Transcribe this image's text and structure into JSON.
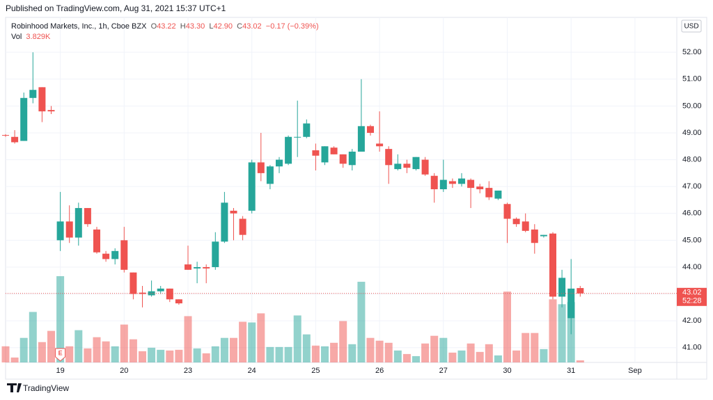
{
  "header": {
    "published": "Published on TradingView.com, Aug 31, 2021 15:37 UTC+1",
    "symbol": "Robinhood Markets, Inc., 1h, Cboe BZX",
    "o_label": "O",
    "o": "43.22",
    "h_label": "H",
    "h": "43.30",
    "l_label": "L",
    "l": "42.90",
    "c_label": "C",
    "c": "43.02",
    "change": "−0.17 (−0.39%)",
    "vol_label": "Vol",
    "vol": "3.829K",
    "currency": "USD"
  },
  "chart_data": {
    "type": "candlestick",
    "categories": [
      null,
      null,
      null,
      null,
      null,
      null,
      "19",
      null,
      null,
      null,
      null,
      null,
      null,
      "20",
      null,
      null,
      null,
      null,
      null,
      null,
      "23",
      null,
      null,
      null,
      null,
      null,
      null,
      "24",
      null,
      null,
      null,
      null,
      null,
      null,
      "25",
      null,
      null,
      null,
      null,
      null,
      null,
      "26",
      null,
      null,
      null,
      null,
      null,
      null,
      "27",
      null,
      null,
      null,
      null,
      null,
      null,
      "30",
      null,
      null,
      null,
      null,
      null,
      null,
      "31",
      null,
      null,
      null,
      null,
      null,
      null,
      "Sep"
    ],
    "open": [
      48.92,
      48.85,
      48.7,
      50.3,
      50.7,
      49.85,
      45.0,
      45.7,
      45.1,
      46.2,
      45.4,
      44.5,
      44.3,
      45.0,
      43.8,
      43.05,
      42.95,
      43.1,
      43.2,
      42.8,
      44.1,
      43.95,
      44.0,
      44.0,
      44.95,
      46.1,
      45.8,
      46.1,
      47.9,
      47.1,
      47.75,
      47.85,
      48.85,
      48.85,
      48.35,
      47.9,
      48.45,
      48.2,
      47.8,
      48.3,
      49.25,
      48.6,
      48.4,
      47.65,
      47.85,
      47.65,
      48.0,
      47.4,
      46.9,
      47.2,
      47.1,
      47.25,
      47.0,
      46.95,
      46.55,
      46.35,
      45.8,
      45.7,
      45.4,
      45.15,
      45.25,
      42.9,
      42.1,
      43.22,
      null,
      null,
      null,
      null,
      null,
      null
    ],
    "high": [
      48.95,
      49.1,
      50.5,
      52.0,
      50.7,
      50.0,
      46.8,
      46.3,
      46.4,
      46.2,
      45.5,
      44.6,
      44.7,
      45.5,
      43.8,
      43.3,
      43.5,
      43.3,
      43.2,
      42.8,
      44.8,
      44.2,
      44.1,
      45.3,
      46.8,
      46.2,
      45.9,
      48.0,
      49.0,
      47.8,
      48.1,
      48.9,
      50.2,
      49.5,
      48.6,
      48.5,
      48.5,
      48.2,
      48.4,
      51.0,
      49.3,
      49.8,
      48.5,
      48.2,
      48.0,
      48.1,
      48.1,
      47.5,
      48.0,
      47.3,
      47.5,
      47.3,
      47.1,
      47.2,
      46.85,
      46.4,
      45.85,
      46.0,
      45.6,
      45.2,
      45.3,
      43.9,
      44.3,
      43.3,
      null,
      null,
      null,
      null,
      null,
      null
    ],
    "low": [
      48.85,
      48.6,
      48.7,
      50.1,
      49.4,
      49.7,
      44.6,
      44.9,
      44.8,
      45.5,
      44.5,
      44.2,
      44.1,
      43.8,
      42.8,
      42.5,
      42.9,
      43.0,
      42.7,
      42.6,
      43.9,
      43.4,
      43.4,
      43.9,
      44.9,
      45.0,
      45.0,
      46.0,
      47.2,
      46.9,
      47.5,
      47.8,
      48.1,
      48.8,
      47.6,
      47.8,
      48.2,
      47.7,
      47.6,
      48.3,
      48.9,
      48.3,
      47.1,
      47.6,
      47.5,
      47.6,
      47.4,
      46.4,
      46.8,
      46.95,
      47.0,
      46.2,
      46.75,
      46.5,
      46.5,
      44.9,
      45.5,
      45.3,
      44.5,
      45.1,
      42.8,
      42.5,
      41.5,
      42.9,
      null,
      null,
      null,
      null,
      null,
      null
    ],
    "close": [
      48.9,
      48.65,
      50.3,
      50.6,
      49.8,
      49.8,
      45.7,
      45.1,
      46.2,
      45.6,
      44.55,
      44.3,
      44.6,
      43.9,
      43.0,
      43.0,
      43.1,
      43.2,
      42.8,
      42.65,
      43.9,
      44.0,
      43.95,
      44.95,
      46.4,
      46.0,
      45.2,
      47.9,
      47.5,
      47.75,
      48.0,
      48.85,
      48.85,
      49.35,
      48.15,
      48.5,
      48.2,
      47.85,
      48.3,
      49.25,
      49.0,
      48.5,
      47.8,
      47.85,
      47.7,
      48.1,
      47.45,
      46.9,
      47.25,
      47.1,
      47.3,
      46.95,
      46.9,
      46.6,
      46.85,
      45.8,
      45.6,
      45.35,
      44.9,
      45.2,
      42.9,
      43.6,
      43.2,
      43.02,
      null,
      null,
      null,
      null,
      null,
      null
    ],
    "volume": [
      29900,
      9100,
      45500,
      93600,
      37700,
      58500,
      159900,
      29900,
      59800,
      26000,
      46800,
      39000,
      29900,
      70200,
      42900,
      20800,
      27300,
      23400,
      22100,
      23400,
      85800,
      26000,
      16900,
      29900,
      45500,
      45500,
      75400,
      74100,
      91000,
      28600,
      28600,
      28600,
      87100,
      52000,
      31200,
      29900,
      36400,
      76700,
      33800,
      149500,
      45500,
      40300,
      36400,
      22100,
      15600,
      11700,
      35100,
      49400,
      45500,
      18200,
      22100,
      35100,
      19500,
      33800,
      13000,
      131300,
      22100,
      54600,
      54600,
      24700,
      117000,
      107900,
      111800,
      3829,
      null,
      null,
      null,
      null,
      null,
      null
    ],
    "up_color": "#26a69a",
    "down_color": "#ef5350",
    "ylim": [
      40.45,
      53.3
    ],
    "yticks": [
      {
        "value": 41,
        "label": "41.00"
      },
      {
        "value": 42,
        "label": "42.00"
      },
      {
        "value": 43,
        "label": "43.00"
      },
      {
        "value": 44,
        "label": "44.00"
      },
      {
        "value": 45,
        "label": "45.00"
      },
      {
        "value": 46,
        "label": "46.00"
      },
      {
        "value": 47,
        "label": "47.00"
      },
      {
        "value": 48,
        "label": "48.00"
      },
      {
        "value": 49,
        "label": "49.00"
      },
      {
        "value": 50,
        "label": "50.00"
      },
      {
        "value": 51,
        "label": "51.00"
      },
      {
        "value": 52,
        "label": "52.00"
      }
    ],
    "last_price": {
      "value": 43.02,
      "label": "43.02"
    },
    "countdown": "52:28",
    "earnings_marker": "E",
    "grid": true
  },
  "footer": {
    "brand": "TradingView"
  }
}
